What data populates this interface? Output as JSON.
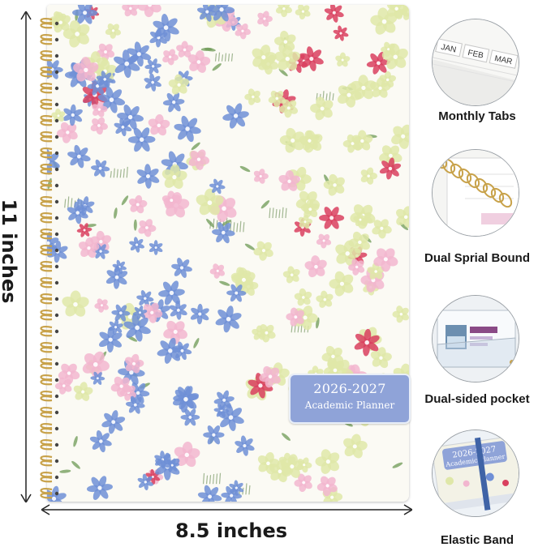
{
  "planner": {
    "title_year": "2026-2027",
    "title_name": "Academic Planner",
    "card_color": "#8fa3d8"
  },
  "dimensions": {
    "height_label": "11 inches",
    "width_label": "8.5 inches"
  },
  "features": [
    {
      "label": "Monthly Tabs",
      "icon": "monthly-tabs-icon",
      "tabs": [
        "JAN",
        "FEB",
        "MAR"
      ]
    },
    {
      "label": "Dual Sprial Bound",
      "icon": "spiral-binding-icon"
    },
    {
      "label": "Dual-sided pocket",
      "icon": "pocket-icon"
    },
    {
      "label": "Elastic Band",
      "icon": "elastic-band-icon",
      "cover_text": [
        "2026-2027",
        "Academic Planner"
      ]
    }
  ],
  "colors": {
    "blue_flower": "#6f8fd6",
    "pink_flower": "#f2b6cf",
    "red_flower": "#d9405f",
    "yellow_flower": "#dfe7a8",
    "leaf": "#6d9a55",
    "ring": "#c8a24a"
  }
}
